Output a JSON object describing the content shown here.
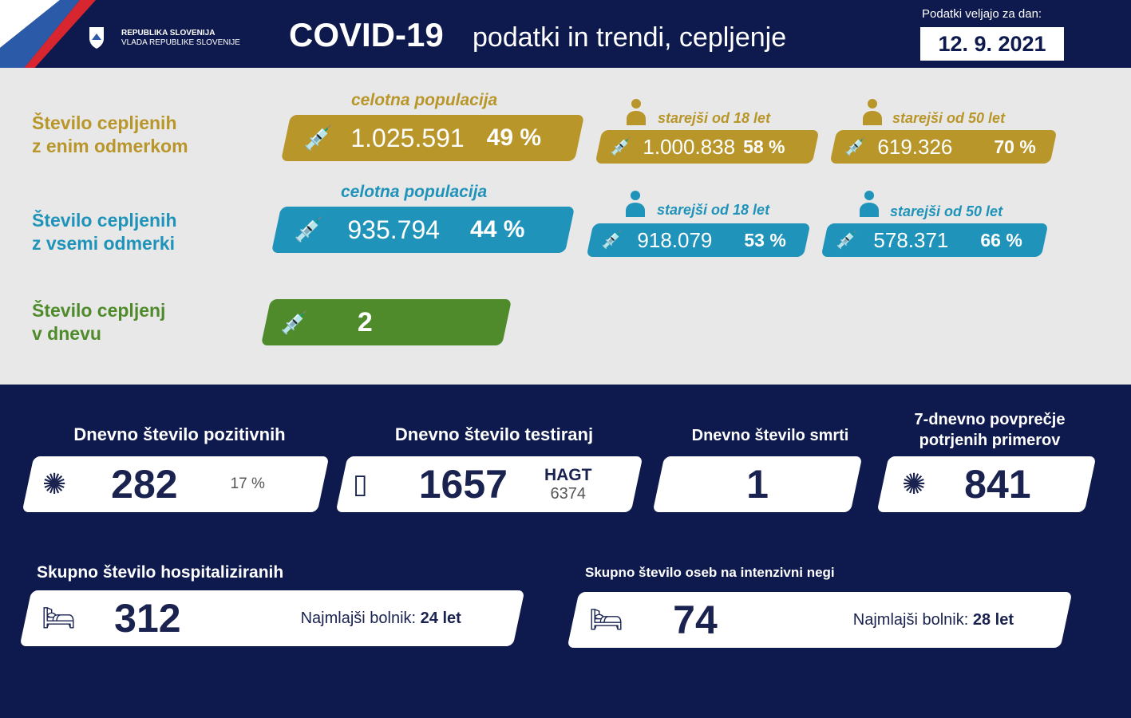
{
  "header": {
    "org_line1": "REPUBLIKA SLOVENIJA",
    "org_line2": "VLADA REPUBLIKE SLOVENIJE",
    "title_bold": "COVID-19",
    "title_rest": "podatki in trendi, cepljenje",
    "date_label": "Podatki veljajo za dan:",
    "date": "12. 9. 2021"
  },
  "colors": {
    "navy": "#0e1a4d",
    "gold": "#b8962a",
    "blue": "#1f93b9",
    "green": "#4f8b2b"
  },
  "vaccination": {
    "one_dose": {
      "label1": "Število cepljenih",
      "label2": "z enim odmerkom",
      "total": {
        "caption": "celotna populacija",
        "value": "1.025.591",
        "pct": "49 %"
      },
      "over18": {
        "caption": "starejši od 18 let",
        "value": "1.000.838",
        "pct": "58 %"
      },
      "over50": {
        "caption": "starejši od 50 let",
        "value": "619.326",
        "pct": "70 %"
      }
    },
    "all_doses": {
      "label1": "Število cepljenih",
      "label2": "z vsemi odmerki",
      "total": {
        "caption": "celotna populacija",
        "value": "935.794",
        "pct": "44 %"
      },
      "over18": {
        "caption": "starejši od 18 let",
        "value": "918.079",
        "pct": "53 %"
      },
      "over50": {
        "caption": "starejši od 50 let",
        "value": "578.371",
        "pct": "66 %"
      }
    },
    "daily": {
      "label1": "Število cepljenj",
      "label2": "v dnevu",
      "value": "2"
    }
  },
  "stats": {
    "positive": {
      "title": "Dnevno število pozitivnih",
      "value": "282",
      "pct": "17 %"
    },
    "tests": {
      "title": "Dnevno število testiranj",
      "value": "1657",
      "hagt_label": "HAGT",
      "hagt_value": "6374"
    },
    "deaths": {
      "title": "Dnevno število smrti",
      "value": "1"
    },
    "avg7": {
      "title1": "7-dnevno povprečje",
      "title2": "potrjenih primerov",
      "value": "841"
    },
    "hospital": {
      "title": "Skupno število hospitaliziranih",
      "value": "312",
      "youngest_label": "Najmlajši bolnik:",
      "youngest_value": "24 let"
    },
    "icu": {
      "title": "Skupno število oseb na intenzivni negi",
      "value": "74",
      "youngest_label": "Najmlajši bolnik:",
      "youngest_value": "28 let"
    }
  }
}
